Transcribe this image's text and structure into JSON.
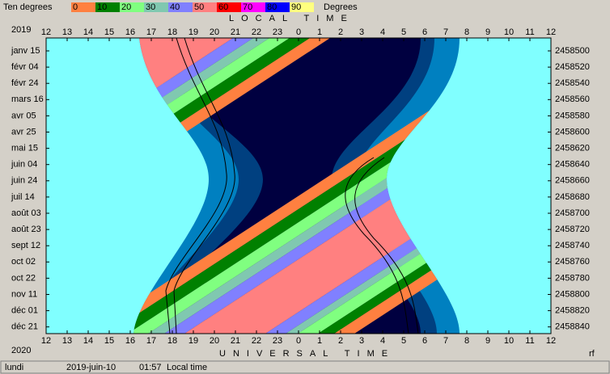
{
  "legend": {
    "title": "Ten degrees",
    "steps": [
      "0",
      "10",
      "20",
      "30",
      "40",
      "50",
      "60",
      "70",
      "80",
      "90"
    ],
    "unit": "Degrees"
  },
  "top_axis": {
    "title": "LOCAL TIME",
    "year": "2019"
  },
  "bottom_axis": {
    "title": "UNIVERSAL TIME",
    "year": "2020",
    "corner": "rf"
  },
  "hours": [
    "12",
    "13",
    "14",
    "15",
    "16",
    "17",
    "18",
    "19",
    "20",
    "21",
    "22",
    "23",
    "0",
    "1",
    "2",
    "3",
    "4",
    "5",
    "6",
    "7",
    "8",
    "9",
    "10",
    "11",
    "12"
  ],
  "dates": [
    "janv 15",
    "févr 04",
    "févr 24",
    "mars 16",
    "avr 05",
    "avr 25",
    "mai 15",
    "juin 04",
    "juin 24",
    "juil 14",
    "août 03",
    "août 23",
    "sept 12",
    "oct 02",
    "oct 22",
    "nov 11",
    "déc 01",
    "déc 21"
  ],
  "julian_days": [
    "2458500",
    "2458520",
    "2458540",
    "2458560",
    "2458580",
    "2458600",
    "2458620",
    "2458640",
    "2458660",
    "2458680",
    "2458700",
    "2458720",
    "2458740",
    "2458760",
    "2458780",
    "2458800",
    "2458820",
    "2458840"
  ],
  "status": [
    "lundi",
    "2019-juin-10",
    "01:57",
    "Local time"
  ]
}
